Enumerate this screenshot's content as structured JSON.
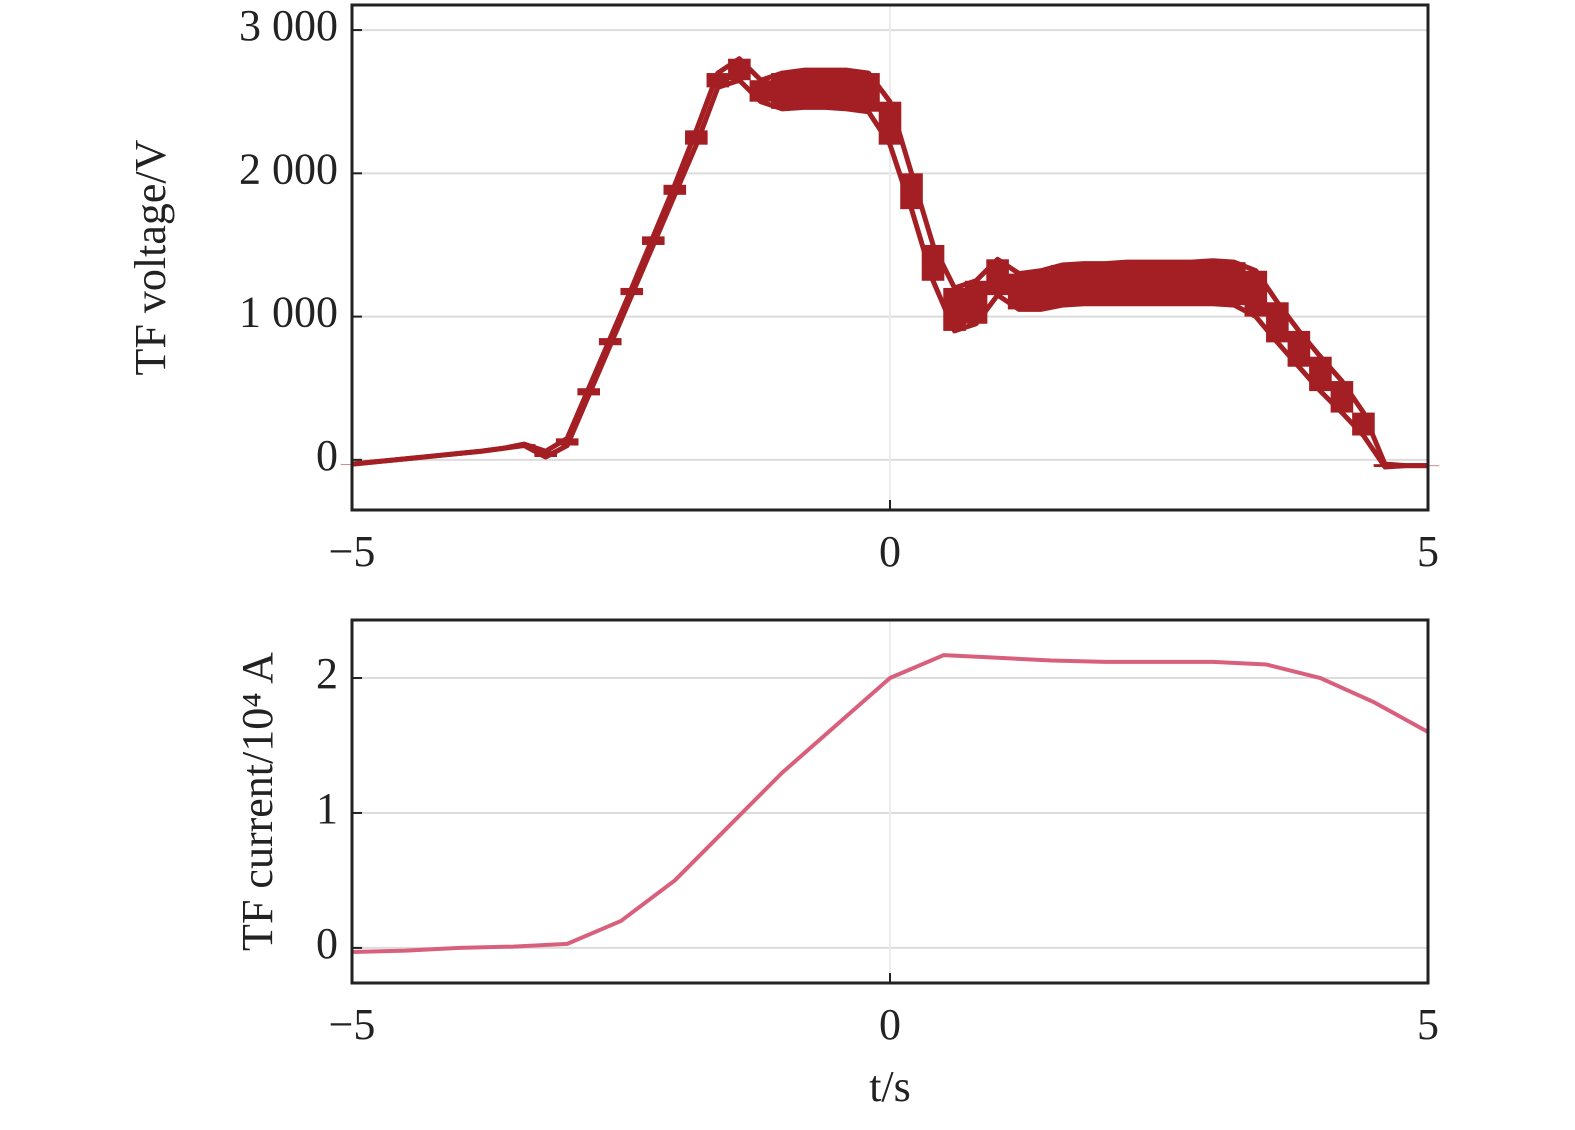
{
  "chart_data": [
    {
      "type": "band",
      "y_label": "TF voltage/V",
      "x": [
        -5,
        -4.8,
        -4.6,
        -4.4,
        -4.2,
        -4,
        -3.8,
        -3.6,
        -3.4,
        -3.2,
        -3,
        -2.8,
        -2.6,
        -2.4,
        -2.2,
        -2,
        -1.8,
        -1.6,
        -1.4,
        -1.2,
        -1,
        -0.8,
        -0.6,
        -0.4,
        -0.2,
        0,
        0.2,
        0.4,
        0.6,
        0.8,
        1,
        1.2,
        1.4,
        1.6,
        1.8,
        2,
        2.2,
        2.4,
        2.6,
        2.8,
        3,
        3.2,
        3.4,
        3.6,
        3.8,
        4,
        4.2,
        4.4,
        4.6,
        4.8,
        5
      ],
      "series": [
        {
          "color": "#a31f24",
          "values": [
            -30,
            -15,
            0,
            15,
            30,
            45,
            60,
            80,
            110,
            60,
            150,
            500,
            850,
            1200,
            1560,
            1920,
            2300,
            2700,
            2800,
            2650,
            2700,
            2720,
            2720,
            2720,
            2700,
            2500,
            2000,
            1500,
            1200,
            1250,
            1400,
            1300,
            1320,
            1360,
            1370,
            1370,
            1380,
            1380,
            1380,
            1380,
            1390,
            1380,
            1320,
            1100,
            900,
            720,
            550,
            330,
            -30,
            -40,
            -40
          ]
        },
        {
          "color": "#a31f24",
          "values": [
            -30,
            -15,
            0,
            15,
            30,
            45,
            60,
            80,
            100,
            20,
            100,
            450,
            800,
            1150,
            1500,
            1850,
            2200,
            2600,
            2650,
            2500,
            2450,
            2460,
            2460,
            2450,
            2430,
            2200,
            1750,
            1250,
            900,
            950,
            1150,
            1050,
            1050,
            1080,
            1090,
            1090,
            1090,
            1090,
            1090,
            1090,
            1090,
            1080,
            1000,
            820,
            650,
            480,
            330,
            170,
            -50,
            -40,
            -40
          ]
        }
      ],
      "xlim": [
        -5,
        5
      ],
      "ylim": [
        -350,
        3175
      ],
      "xticks": [
        {
          "value": -5,
          "label": "−5"
        },
        0,
        5
      ],
      "yticks": [
        0,
        {
          "value": 1000,
          "label": "1 000"
        },
        {
          "value": 2000,
          "label": "2 000"
        },
        {
          "value": 3000,
          "label": "3 000"
        }
      ],
      "grid": true
    },
    {
      "type": "line",
      "y_label": "TF current/10⁴ A",
      "x_label": "t/s",
      "x": [
        -5,
        -4.5,
        -4,
        -3.5,
        -3,
        -2.5,
        -2,
        -1.5,
        -1,
        -0.5,
        0,
        0.5,
        1,
        1.5,
        2,
        2.5,
        3,
        3.5,
        4,
        4.5,
        5
      ],
      "series": [
        {
          "color": "#d9607c",
          "values": [
            -0.03,
            -0.02,
            0,
            0.01,
            0.03,
            0.2,
            0.5,
            0.9,
            1.3,
            1.65,
            2.0,
            2.17,
            2.15,
            2.13,
            2.12,
            2.12,
            2.12,
            2.1,
            2.0,
            1.82,
            1.6
          ]
        }
      ],
      "xlim": [
        -5,
        5
      ],
      "ylim": [
        -0.26,
        2.43
      ],
      "xticks": [
        {
          "value": -5,
          "label": "−5"
        },
        0,
        5
      ],
      "yticks": [
        0,
        1,
        2
      ],
      "grid": true
    }
  ]
}
